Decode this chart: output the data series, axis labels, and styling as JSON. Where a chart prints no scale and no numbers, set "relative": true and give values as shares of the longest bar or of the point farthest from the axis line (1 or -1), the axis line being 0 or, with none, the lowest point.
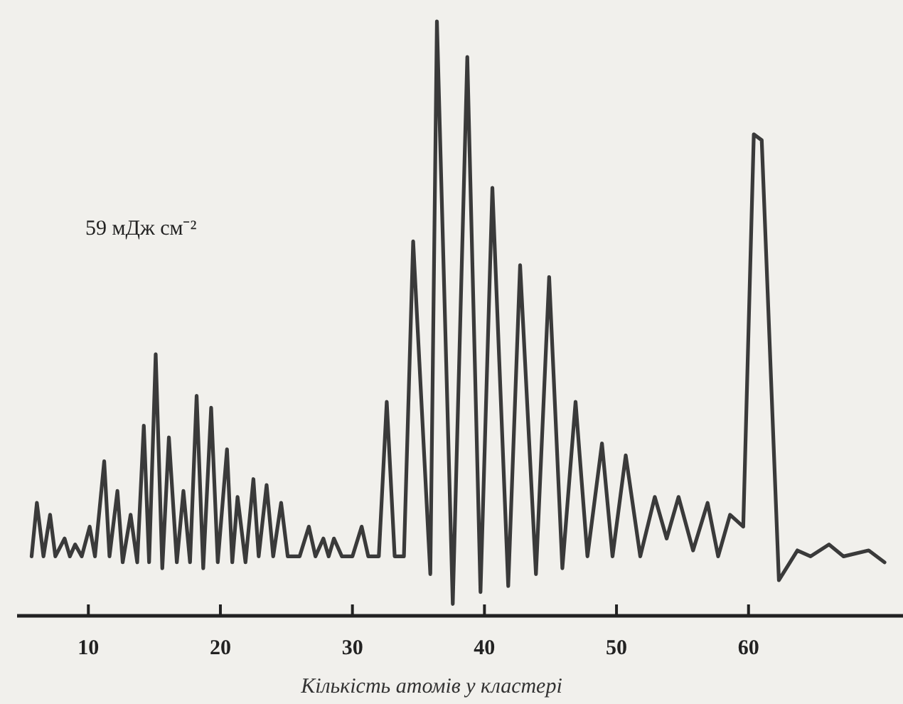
{
  "chart_data": {
    "type": "line",
    "relative": true,
    "xlabel": "Кількість атомів у кластері",
    "annotations": [
      "59 мДж см⁻²"
    ],
    "xlim": [
      4.6,
      71.7
    ],
    "xticks": [
      10,
      20,
      30,
      40,
      50,
      60
    ],
    "color": "#3a3a3a",
    "marker": "none",
    "line_style": "solid",
    "x": [
      5.7,
      6.1,
      6.6,
      7.1,
      7.5,
      8.2,
      8.6,
      9.0,
      9.5,
      10.1,
      10.5,
      11.2,
      11.6,
      12.2,
      12.6,
      13.2,
      13.7,
      14.2,
      14.6,
      15.1,
      15.6,
      16.1,
      16.7,
      17.2,
      17.7,
      18.2,
      18.7,
      19.3,
      19.8,
      20.5,
      20.9,
      21.3,
      21.9,
      22.5,
      22.9,
      23.5,
      24.0,
      24.6,
      25.1,
      26.0,
      26.7,
      27.2,
      27.8,
      28.2,
      28.6,
      29.2,
      30.0,
      30.7,
      31.2,
      32.0,
      32.6,
      33.2,
      33.9,
      34.6,
      35.9,
      36.4,
      37.6,
      38.7,
      39.7,
      40.6,
      41.8,
      42.7,
      43.9,
      44.9,
      45.9,
      46.9,
      47.8,
      48.9,
      49.7,
      50.7,
      51.8,
      52.9,
      53.8,
      54.7,
      55.8,
      56.9,
      57.7,
      58.6,
      59.6,
      60.4,
      61.0,
      62.3,
      63.7,
      64.7,
      66.1,
      67.2,
      69.1,
      70.3
    ],
    "values": [
      0.1,
      0.19,
      0.1,
      0.17,
      0.1,
      0.13,
      0.1,
      0.12,
      0.1,
      0.15,
      0.1,
      0.26,
      0.1,
      0.21,
      0.09,
      0.17,
      0.09,
      0.32,
      0.09,
      0.44,
      0.08,
      0.3,
      0.09,
      0.21,
      0.09,
      0.37,
      0.08,
      0.35,
      0.09,
      0.28,
      0.09,
      0.2,
      0.09,
      0.23,
      0.1,
      0.22,
      0.1,
      0.19,
      0.1,
      0.1,
      0.15,
      0.1,
      0.13,
      0.1,
      0.13,
      0.1,
      0.1,
      0.15,
      0.1,
      0.1,
      0.36,
      0.1,
      0.1,
      0.63,
      0.07,
      1,
      0.02,
      0.94,
      0.04,
      0.72,
      0.05,
      0.59,
      0.07,
      0.57,
      0.08,
      0.36,
      0.1,
      0.29,
      0.1,
      0.27,
      0.1,
      0.2,
      0.13,
      0.2,
      0.11,
      0.19,
      0.1,
      0.17,
      0.15,
      0.81,
      0.8,
      0.06,
      0.11,
      0.1,
      0.12,
      0.1,
      0.11,
      0.09
    ]
  }
}
